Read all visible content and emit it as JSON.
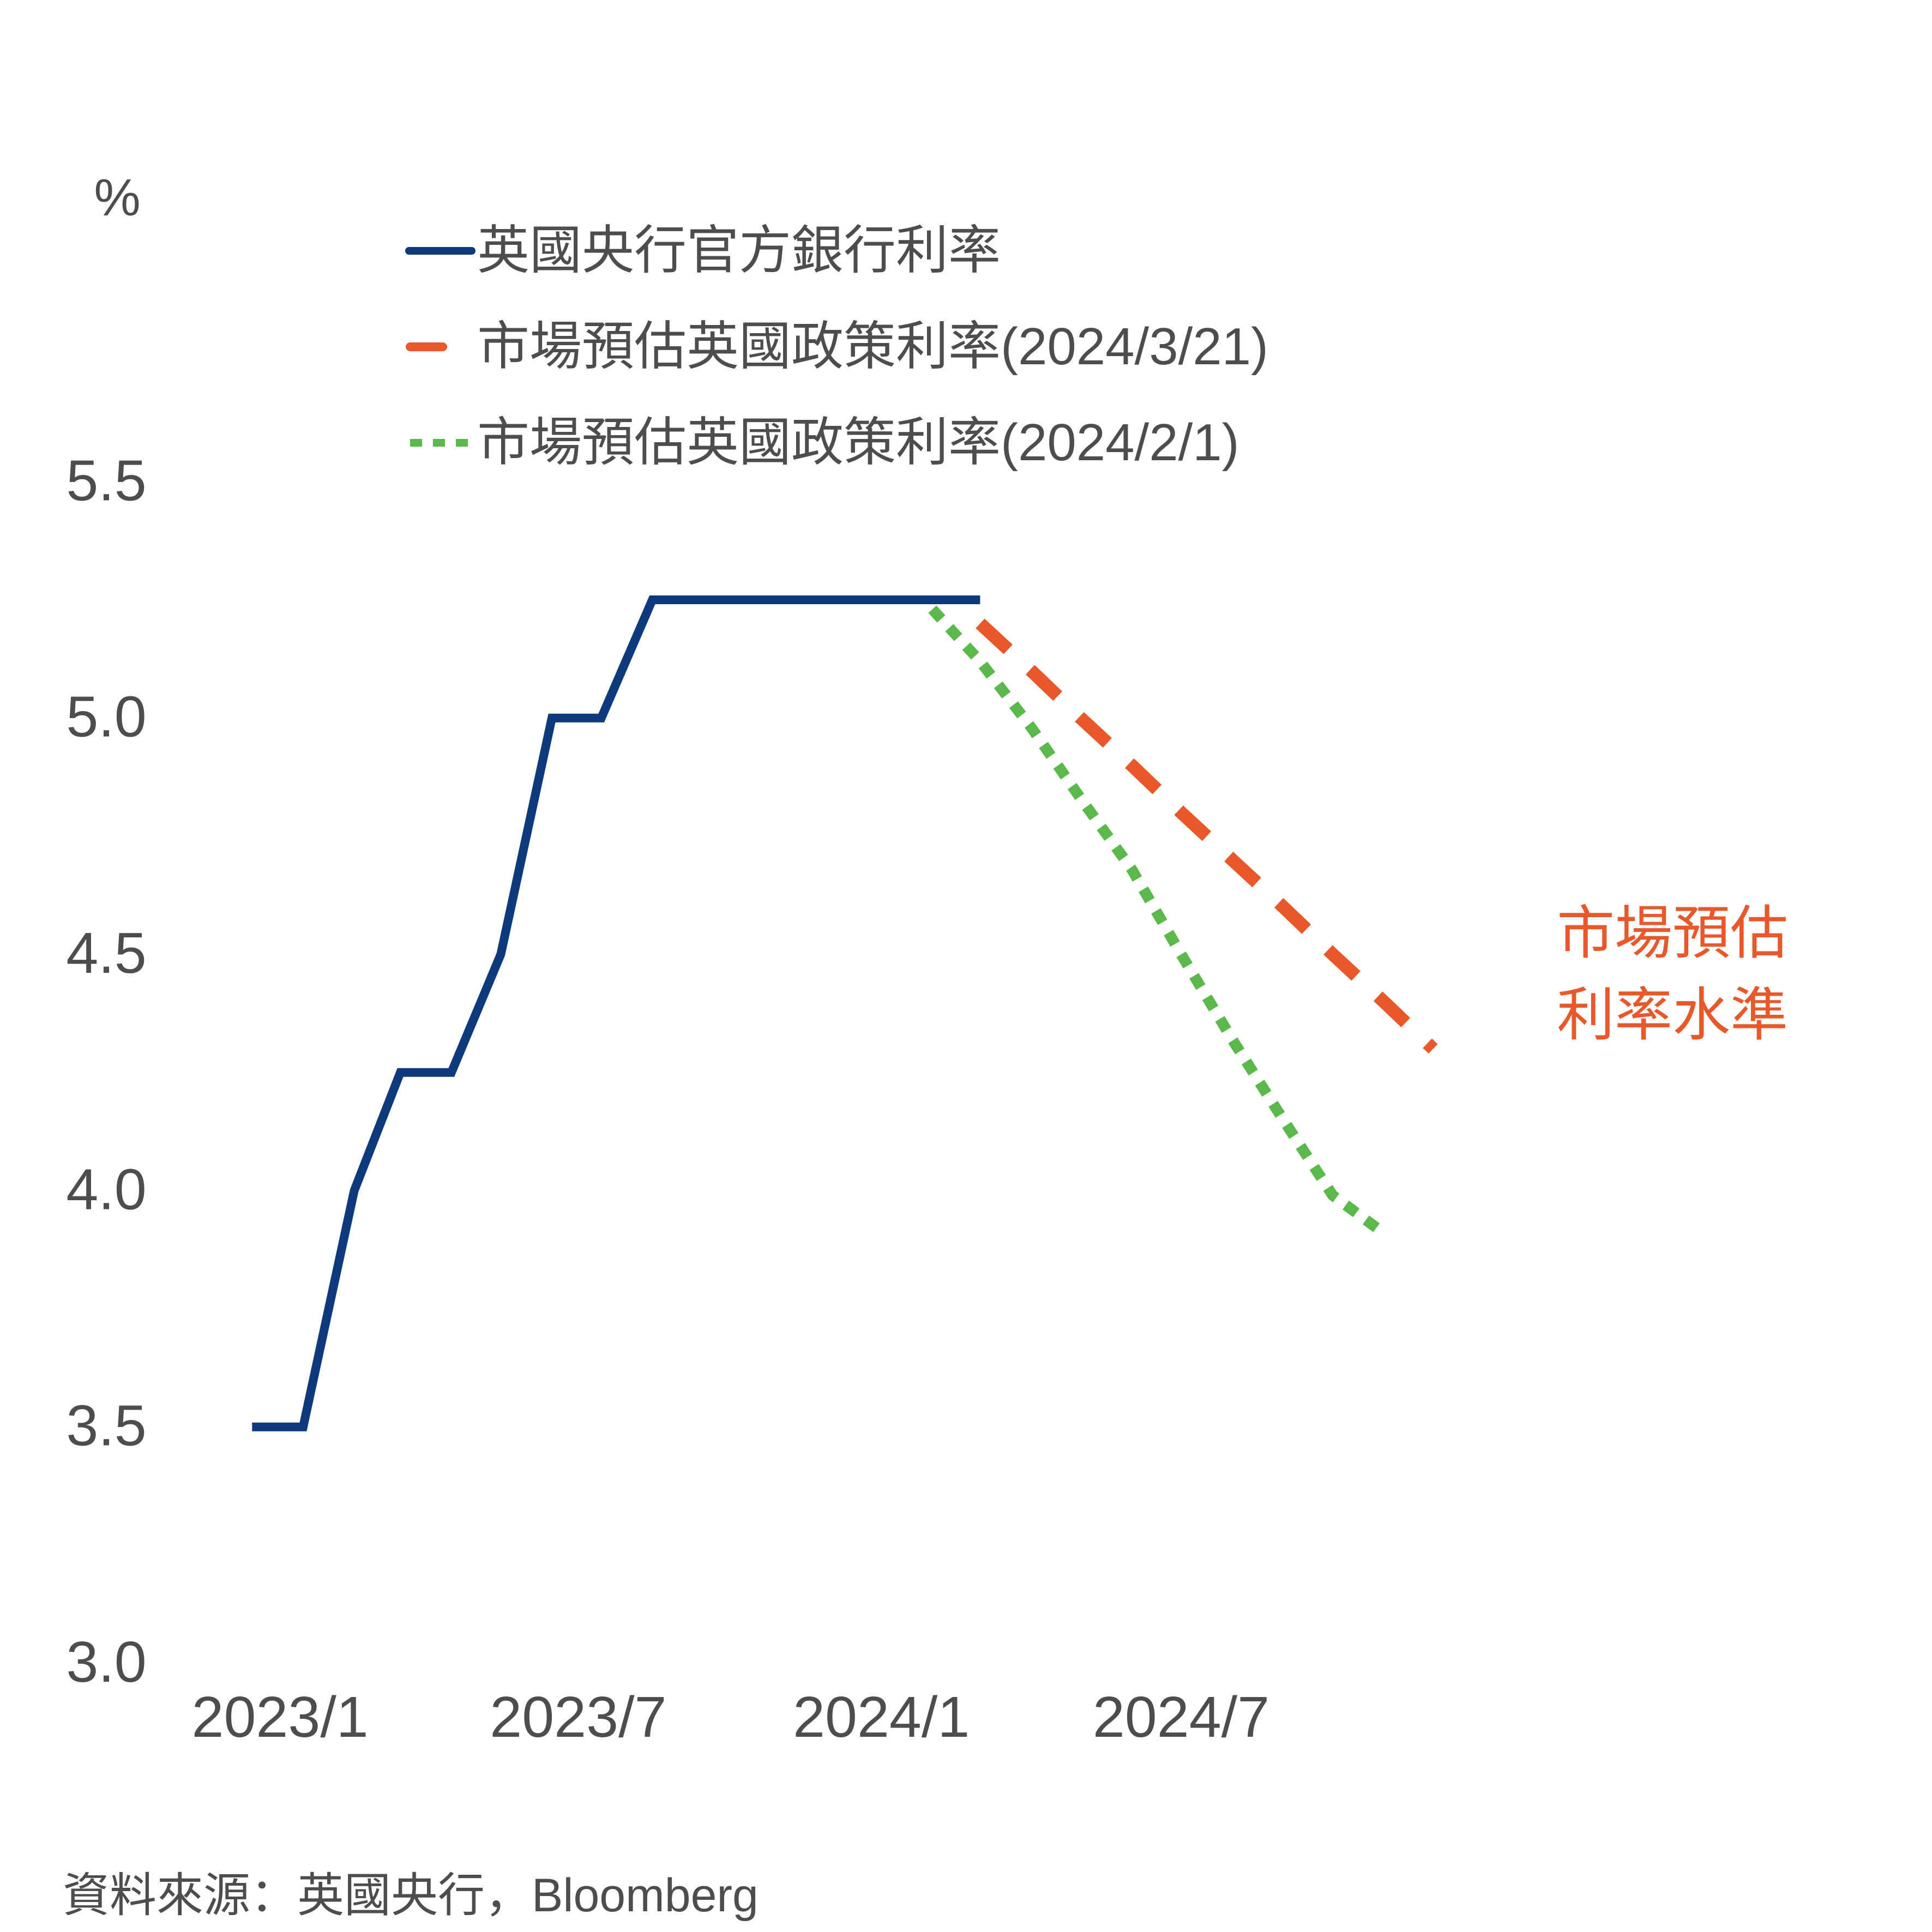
{
  "chart_data": {
    "type": "line",
    "ylabel": "%",
    "ylim": [
      3.0,
      5.7
    ],
    "yticks": [
      "3.0",
      "3.5",
      "4.0",
      "4.5",
      "5.0",
      "5.5"
    ],
    "xticks": [
      "2023/1",
      "2023/7",
      "2024/1",
      "2024/7"
    ],
    "xlim": [
      "2022-12-01",
      "2025-03-01"
    ],
    "series": [
      {
        "name": "英國央行官方銀行利率",
        "style": "solid",
        "color": "#0d3a7a",
        "points": [
          {
            "x": "2022-12-15",
            "y": 3.5
          },
          {
            "x": "2023-01-15",
            "y": 3.5
          },
          {
            "x": "2023-02-15",
            "y": 4.0
          },
          {
            "x": "2023-03-15",
            "y": 4.25
          },
          {
            "x": "2023-04-15",
            "y": 4.25
          },
          {
            "x": "2023-05-15",
            "y": 4.5
          },
          {
            "x": "2023-06-15",
            "y": 5.0
          },
          {
            "x": "2023-07-15",
            "y": 5.0
          },
          {
            "x": "2023-08-15",
            "y": 5.25
          },
          {
            "x": "2024-03-01",
            "y": 5.25
          }
        ]
      },
      {
        "name": "市場預估英國政策利率(2024/3/21)",
        "style": "dashed",
        "color": "#e8582a",
        "points": [
          {
            "x": "2024-03-01",
            "y": 5.2
          },
          {
            "x": "2024-04-01",
            "y": 5.1
          },
          {
            "x": "2024-05-01",
            "y": 5.0
          },
          {
            "x": "2024-06-01",
            "y": 4.9
          },
          {
            "x": "2024-07-01",
            "y": 4.8
          },
          {
            "x": "2024-08-01",
            "y": 4.7
          },
          {
            "x": "2024-09-01",
            "y": 4.6
          },
          {
            "x": "2024-10-01",
            "y": 4.5
          },
          {
            "x": "2024-11-01",
            "y": 4.4
          },
          {
            "x": "2024-12-01",
            "y": 4.3
          }
        ]
      },
      {
        "name": "市場預估英國政策利率(2024/2/1)",
        "style": "dotted",
        "color": "#5bb84a",
        "points": [
          {
            "x": "2024-02-01",
            "y": 5.23
          },
          {
            "x": "2024-03-01",
            "y": 5.12
          },
          {
            "x": "2024-04-01",
            "y": 4.98
          },
          {
            "x": "2024-05-01",
            "y": 4.83
          },
          {
            "x": "2024-06-01",
            "y": 4.68
          },
          {
            "x": "2024-07-01",
            "y": 4.5
          },
          {
            "x": "2024-08-01",
            "y": 4.32
          },
          {
            "x": "2024-09-01",
            "y": 4.15
          },
          {
            "x": "2024-10-01",
            "y": 3.99
          },
          {
            "x": "2024-11-01",
            "y": 3.91
          }
        ]
      }
    ],
    "annotation": {
      "lines": [
        "市場預估",
        "利率水準"
      ],
      "color": "#e8582a"
    },
    "legend": "top"
  },
  "source": "資料來源：英國央行，Bloomberg"
}
